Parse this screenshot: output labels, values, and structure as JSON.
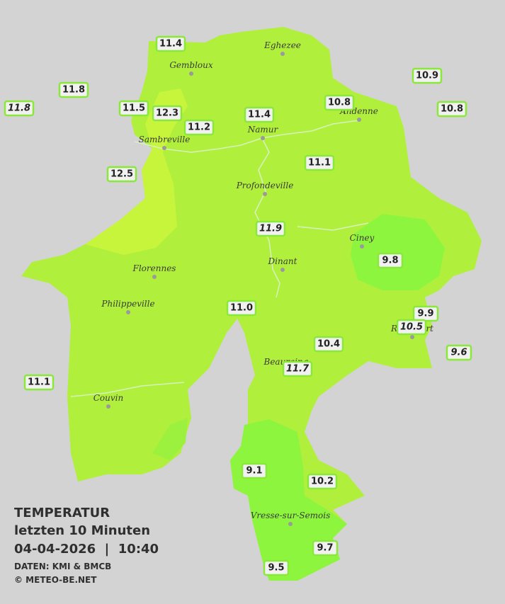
{
  "title": "TEMPERATUR",
  "subtitle": "letzten 10 Minuten",
  "timestamp": "04-04-2026  |  10:40",
  "source": "DATEN: KMI & BMCB",
  "copyright": "© METEO-BE.NET",
  "towns": [
    "Eghezee",
    "Gembloux",
    "Andenne",
    "Sambreville",
    "Namur",
    "Profondeville",
    "Ciney",
    "Dinant",
    "Florennes",
    "Philippeville",
    "Couvin",
    "Vresse-sur-Semois",
    "Beauraing",
    "Rochefort"
  ],
  "stations": [
    {
      "value": "11.4",
      "italic": false
    },
    {
      "value": "11.8",
      "italic": false
    },
    {
      "value": "11.8",
      "italic": true
    },
    {
      "value": "11.5",
      "italic": false
    },
    {
      "value": "12.3",
      "italic": false
    },
    {
      "value": "11.2",
      "italic": false
    },
    {
      "value": "11.4",
      "italic": false
    },
    {
      "value": "10.8",
      "italic": false
    },
    {
      "value": "10.9",
      "italic": false
    },
    {
      "value": "10.8",
      "italic": false
    },
    {
      "value": "12.5",
      "italic": false
    },
    {
      "value": "11.1",
      "italic": false
    },
    {
      "value": "11.9",
      "italic": true
    },
    {
      "value": "9.8",
      "italic": false
    },
    {
      "value": "11.0",
      "italic": false
    },
    {
      "value": "9.9",
      "italic": false
    },
    {
      "value": "10.5",
      "italic": true
    },
    {
      "value": "9.6",
      "italic": true
    },
    {
      "value": "10.4",
      "italic": false
    },
    {
      "value": "11.7",
      "italic": true
    },
    {
      "value": "11.1",
      "italic": false
    },
    {
      "value": "9.1",
      "italic": false
    },
    {
      "value": "10.2",
      "italic": false
    },
    {
      "value": "9.7",
      "italic": false
    },
    {
      "value": "9.5",
      "italic": false
    }
  ]
}
